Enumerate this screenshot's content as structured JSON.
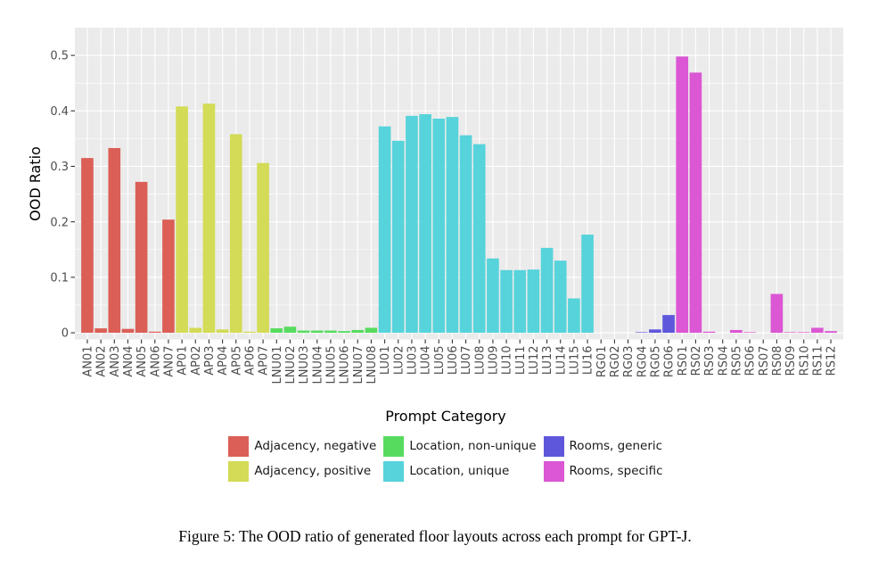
{
  "caption": "Figure 5: The OOD ratio of generated floor layouts across each prompt for GPT-J.",
  "chart_data": {
    "type": "bar",
    "ylabel": "OOD Ratio",
    "ylim": [
      -0.012,
      0.55
    ],
    "yticks": [
      0,
      0.1,
      0.2,
      0.3,
      0.4,
      0.5
    ],
    "grid": true,
    "panel_background": "#ebebeb",
    "legend": {
      "title": "Prompt Category",
      "placement": "bottom"
    },
    "series": [
      {
        "name": "Adjacency, negative",
        "color": "#db5f57",
        "categories": [
          "AN01",
          "AN02",
          "AN03",
          "AN04",
          "AN05",
          "AN06",
          "AN07"
        ],
        "values": [
          0.315,
          0.008,
          0.333,
          0.007,
          0.272,
          0.002,
          0.204
        ]
      },
      {
        "name": "Adjacency, positive",
        "color": "#d3db57",
        "categories": [
          "AP01",
          "AP02",
          "AP03",
          "AP04",
          "AP05",
          "AP06",
          "AP07"
        ],
        "values": [
          0.408,
          0.009,
          0.413,
          0.006,
          0.358,
          0.002,
          0.306
        ]
      },
      {
        "name": "Location, non-unique",
        "color": "#57db5f",
        "categories": [
          "LNU01",
          "LNU02",
          "LNU03",
          "LNU04",
          "LNU05",
          "LNU06",
          "LNU07",
          "LNU08"
        ],
        "values": [
          0.008,
          0.011,
          0.004,
          0.004,
          0.004,
          0.003,
          0.005,
          0.009
        ]
      },
      {
        "name": "Location, unique",
        "color": "#57d3db",
        "categories": [
          "LU01",
          "LU02",
          "LU03",
          "LU04",
          "LU05",
          "LU06",
          "LU07",
          "LU08",
          "LU09",
          "LU10",
          "LU11",
          "LU12",
          "LU13",
          "LU14",
          "LU15",
          "LU16"
        ],
        "values": [
          0.372,
          0.346,
          0.391,
          0.394,
          0.386,
          0.389,
          0.356,
          0.34,
          0.134,
          0.113,
          0.113,
          0.114,
          0.153,
          0.13,
          0.062,
          0.177
        ]
      },
      {
        "name": "Rooms, generic",
        "color": "#5f57db",
        "categories": [
          "RG01",
          "RG02",
          "RG03",
          "RG04",
          "RG05",
          "RG06"
        ],
        "values": [
          0,
          0,
          0,
          0.001,
          0.006,
          0.032
        ]
      },
      {
        "name": "Rooms, specific",
        "color": "#db57d3",
        "categories": [
          "RS01",
          "RS02",
          "RS03",
          "RS04",
          "RS05",
          "RS06",
          "RS07",
          "RS08",
          "RS09",
          "RS10",
          "RS11",
          "RS12"
        ],
        "values": [
          0.498,
          0.469,
          0.002,
          0,
          0.005,
          0.001,
          0,
          0.07,
          0.001,
          0.001,
          0.009,
          0.003
        ]
      }
    ]
  }
}
